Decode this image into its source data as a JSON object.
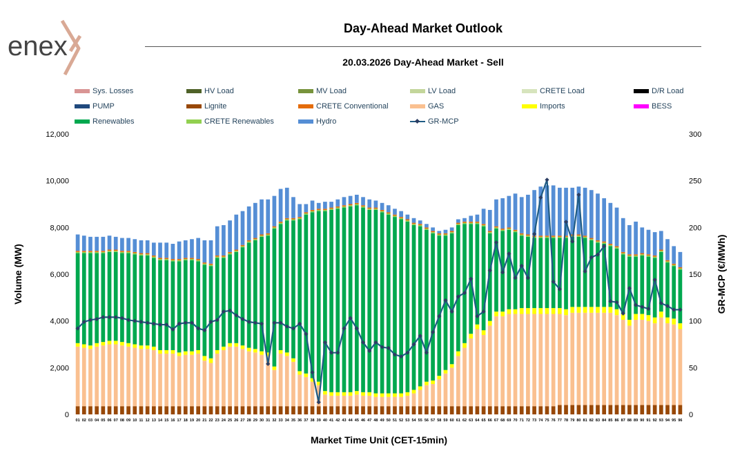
{
  "brand": {
    "name": "enex"
  },
  "header": {
    "title": "Day-Ahead Market Outlook",
    "subtitle": "20.03.2026  Day-Ahead Market - Sell"
  },
  "colors": {
    "sys_losses": "#d99594",
    "hv_load": "#4f6228",
    "mv_load": "#77933c",
    "lv_load": "#c3d69b",
    "crete_load": "#d7e4bd",
    "dr_load": "#000000",
    "pump": "#1f497d",
    "lignite": "#984807",
    "crete_conventional": "#e46c0a",
    "gas": "#fac090",
    "imports": "#ffff00",
    "bess": "#ff00ff",
    "renewables": "#00a84f",
    "crete_renewables": "#92d050",
    "hydro": "#558ed5",
    "gr_mcp": "#1f5b84"
  },
  "legend": [
    {
      "key": "sys_losses",
      "label": "Sys. Losses"
    },
    {
      "key": "hv_load",
      "label": "HV Load"
    },
    {
      "key": "mv_load",
      "label": "MV Load"
    },
    {
      "key": "lv_load",
      "label": "LV Load"
    },
    {
      "key": "crete_load",
      "label": "CRETE Load"
    },
    {
      "key": "dr_load",
      "label": "D/R Load"
    },
    {
      "key": "pump",
      "label": "PUMP"
    },
    {
      "key": "lignite",
      "label": "Lignite"
    },
    {
      "key": "crete_conventional",
      "label": "CRETE Conventional"
    },
    {
      "key": "gas",
      "label": "GAS"
    },
    {
      "key": "imports",
      "label": "Imports"
    },
    {
      "key": "bess",
      "label": "BESS"
    },
    {
      "key": "renewables",
      "label": "Renewables"
    },
    {
      "key": "crete_renewables",
      "label": "CRETE Renewables"
    },
    {
      "key": "hydro",
      "label": "Hydro"
    },
    {
      "key": "gr_mcp",
      "label": "GR-MCP"
    }
  ],
  "chart_data": {
    "type": "bar",
    "stacked": true,
    "xlabel": "Market Time Unit (CET-15min)",
    "ylabel": "Volume (MW)",
    "y2label": "GR-MCP (€/MWh)",
    "ylim": [
      0,
      12000
    ],
    "y2lim": [
      0,
      300
    ],
    "yticks": [
      0,
      2000,
      4000,
      6000,
      8000,
      10000,
      12000
    ],
    "yticklabels": [
      "0",
      "2,000",
      "4,000",
      "6,000",
      "8,000",
      "10,000",
      "12,000"
    ],
    "y2ticks": [
      0,
      50,
      100,
      150,
      200,
      250,
      300
    ],
    "categories": [
      "01",
      "02",
      "03",
      "04",
      "05",
      "06",
      "07",
      "08",
      "09",
      "10",
      "11",
      "12",
      "13",
      "14",
      "15",
      "16",
      "17",
      "18",
      "19",
      "20",
      "21",
      "22",
      "23",
      "24",
      "25",
      "26",
      "27",
      "28",
      "29",
      "30",
      "31",
      "32",
      "33",
      "34",
      "35",
      "36",
      "37",
      "38",
      "39",
      "40",
      "41",
      "42",
      "43",
      "44",
      "45",
      "46",
      "47",
      "48",
      "49",
      "50",
      "51",
      "52",
      "53",
      "54",
      "55",
      "56",
      "57",
      "58",
      "59",
      "60",
      "61",
      "62",
      "63",
      "64",
      "65",
      "66",
      "67",
      "68",
      "69",
      "70",
      "71",
      "72",
      "73",
      "74",
      "75",
      "76",
      "77",
      "78",
      "79",
      "80",
      "81",
      "82",
      "83",
      "84",
      "85",
      "86",
      "87",
      "88",
      "89",
      "90",
      "91",
      "92",
      "93",
      "94",
      "95",
      "96"
    ],
    "series": [
      {
        "name": "Lignite",
        "key": "lignite",
        "values": [
          350,
          350,
          350,
          350,
          350,
          350,
          350,
          350,
          350,
          350,
          350,
          350,
          350,
          350,
          350,
          350,
          350,
          350,
          350,
          350,
          350,
          350,
          350,
          350,
          350,
          350,
          350,
          350,
          350,
          350,
          350,
          350,
          350,
          350,
          350,
          350,
          350,
          350,
          350,
          350,
          350,
          350,
          350,
          350,
          350,
          350,
          350,
          350,
          350,
          350,
          350,
          350,
          350,
          350,
          350,
          350,
          350,
          350,
          350,
          350,
          350,
          350,
          350,
          350,
          350,
          350,
          350,
          350,
          350,
          350,
          350,
          350,
          350,
          350,
          350,
          350,
          400,
          400,
          400,
          400,
          400,
          400,
          400,
          400,
          400,
          400,
          400,
          400,
          400,
          400,
          400,
          400,
          400,
          400,
          400,
          400
        ]
      },
      {
        "name": "GAS",
        "key": "gas",
        "values": [
          2550,
          2500,
          2450,
          2550,
          2600,
          2650,
          2650,
          2600,
          2550,
          2500,
          2450,
          2450,
          2400,
          2250,
          2250,
          2250,
          2150,
          2200,
          2200,
          2250,
          1950,
          1850,
          2250,
          2400,
          2550,
          2550,
          2450,
          2350,
          2300,
          2200,
          2150,
          1550,
          2250,
          2150,
          1900,
          1350,
          1250,
          1050,
          900,
          500,
          450,
          450,
          450,
          450,
          500,
          450,
          450,
          400,
          400,
          400,
          400,
          400,
          450,
          550,
          700,
          900,
          950,
          1150,
          1400,
          1650,
          2150,
          2500,
          2900,
          3300,
          3050,
          3450,
          3850,
          3850,
          3950,
          3950,
          3950,
          3950,
          3950,
          3950,
          3950,
          3950,
          3900,
          3850,
          3950,
          3950,
          3950,
          3950,
          3950,
          3950,
          3950,
          3850,
          3650,
          3400,
          3650,
          3650,
          3600,
          3500,
          3750,
          3500,
          3450,
          3250
        ]
      },
      {
        "name": "Imports",
        "key": "imports",
        "values": [
          150,
          150,
          150,
          150,
          150,
          150,
          150,
          150,
          150,
          150,
          150,
          150,
          150,
          150,
          150,
          150,
          150,
          150,
          150,
          150,
          200,
          200,
          150,
          150,
          150,
          150,
          150,
          150,
          150,
          150,
          150,
          150,
          150,
          150,
          150,
          150,
          150,
          150,
          150,
          150,
          150,
          150,
          150,
          150,
          150,
          150,
          150,
          150,
          150,
          150,
          150,
          150,
          150,
          150,
          150,
          150,
          150,
          150,
          150,
          150,
          200,
          200,
          200,
          200,
          200,
          200,
          200,
          200,
          200,
          200,
          250,
          250,
          250,
          250,
          250,
          250,
          250,
          250,
          250,
          250,
          250,
          250,
          250,
          250,
          250,
          250,
          250,
          250,
          250,
          250,
          250,
          250,
          250,
          250,
          250,
          250
        ]
      },
      {
        "name": "Renewables",
        "key": "renewables",
        "values": [
          3850,
          3900,
          3950,
          3850,
          3800,
          3800,
          3800,
          3800,
          3850,
          3850,
          3850,
          3850,
          3800,
          3850,
          3850,
          3800,
          3900,
          3900,
          3900,
          3800,
          3900,
          3950,
          3950,
          3800,
          3800,
          3900,
          4200,
          4500,
          4650,
          4900,
          5000,
          5900,
          5400,
          5650,
          5900,
          6500,
          6800,
          7100,
          7300,
          7700,
          7800,
          7850,
          7900,
          7950,
          7950,
          7900,
          7800,
          7850,
          7750,
          7650,
          7550,
          7450,
          7300,
          7050,
          6850,
          6500,
          6300,
          6000,
          5750,
          5600,
          5400,
          5100,
          4700,
          4300,
          4450,
          3750,
          3550,
          3450,
          3400,
          3300,
          3100,
          3050,
          3000,
          3000,
          3000,
          3000,
          3000,
          3050,
          3000,
          3000,
          2950,
          2850,
          2750,
          2700,
          2600,
          2600,
          2550,
          2700,
          2450,
          2500,
          2500,
          2550,
          2550,
          2350,
          2250,
          2300
        ]
      },
      {
        "name": "CRETE Renewables",
        "key": "crete_renewables",
        "values": [
          50,
          50,
          50,
          50,
          50,
          50,
          50,
          50,
          50,
          50,
          50,
          50,
          50,
          50,
          50,
          50,
          50,
          50,
          50,
          50,
          50,
          50,
          50,
          50,
          50,
          50,
          50,
          50,
          50,
          50,
          50,
          50,
          50,
          50,
          50,
          50,
          50,
          50,
          50,
          50,
          50,
          50,
          50,
          50,
          50,
          50,
          50,
          50,
          50,
          50,
          50,
          50,
          50,
          50,
          50,
          50,
          50,
          50,
          50,
          50,
          50,
          50,
          50,
          50,
          50,
          50,
          50,
          50,
          50,
          50,
          50,
          50,
          50,
          50,
          50,
          50,
          50,
          50,
          50,
          50,
          50,
          50,
          50,
          50,
          50,
          50,
          50,
          50,
          50,
          50,
          50,
          50,
          50,
          50,
          50,
          50
        ]
      },
      {
        "name": "CRETE Conventional",
        "key": "crete_conventional",
        "values": [
          50,
          50,
          50,
          50,
          50,
          50,
          50,
          50,
          50,
          50,
          50,
          50,
          50,
          50,
          50,
          50,
          50,
          50,
          50,
          50,
          50,
          50,
          50,
          50,
          50,
          50,
          50,
          50,
          50,
          50,
          50,
          50,
          50,
          50,
          50,
          50,
          50,
          50,
          50,
          50,
          50,
          50,
          50,
          50,
          50,
          50,
          50,
          50,
          50,
          50,
          50,
          50,
          50,
          50,
          50,
          50,
          50,
          50,
          50,
          50,
          50,
          50,
          50,
          50,
          50,
          50,
          50,
          50,
          50,
          50,
          50,
          50,
          50,
          50,
          50,
          50,
          50,
          50,
          50,
          50,
          50,
          50,
          50,
          50,
          50,
          50,
          50,
          50,
          50,
          50,
          50,
          50,
          50,
          50,
          50,
          50
        ]
      },
      {
        "name": "Hydro",
        "key": "hydro",
        "values": [
          700,
          650,
          600,
          600,
          600,
          600,
          550,
          550,
          550,
          550,
          550,
          550,
          550,
          650,
          650,
          650,
          750,
          750,
          800,
          900,
          950,
          1000,
          1250,
          1300,
          1350,
          1500,
          1450,
          1450,
          1500,
          1500,
          1450,
          1300,
          1400,
          1300,
          900,
          550,
          350,
          400,
          250,
          300,
          250,
          300,
          350,
          350,
          350,
          350,
          350,
          300,
          300,
          300,
          250,
          250,
          200,
          200,
          150,
          150,
          150,
          100,
          150,
          150,
          150,
          150,
          250,
          300,
          650,
          900,
          1150,
          1300,
          1350,
          1550,
          1550,
          1700,
          1950,
          2100,
          2150,
          2150,
          2050,
          2050,
          2000,
          2050,
          2050,
          2050,
          2000,
          1850,
          1750,
          1650,
          1450,
          1250,
          1400,
          1100,
          1050,
          1000,
          800,
          900,
          750,
          650
        ]
      }
    ],
    "line": {
      "name": "GR-MCP",
      "key": "gr_mcp",
      "axis": "y2",
      "values": [
        92,
        99,
        101,
        102,
        104,
        104,
        104,
        103,
        101,
        100,
        99,
        98,
        97,
        96,
        96,
        91,
        97,
        98,
        98,
        92,
        90,
        99,
        101,
        110,
        111,
        106,
        102,
        99,
        98,
        97,
        54,
        98,
        98,
        94,
        92,
        97,
        86,
        45,
        13,
        77,
        66,
        66,
        92,
        103,
        92,
        77,
        68,
        77,
        72,
        71,
        64,
        62,
        66,
        75,
        84,
        66,
        88,
        105,
        122,
        110,
        126,
        130,
        145,
        105,
        110,
        154,
        184,
        152,
        172,
        146,
        159,
        146,
        193,
        232,
        251,
        142,
        134,
        206,
        185,
        235,
        153,
        168,
        171,
        180,
        121,
        120,
        108,
        135,
        117,
        115,
        113,
        144,
        119,
        116,
        112,
        112
      ]
    }
  }
}
